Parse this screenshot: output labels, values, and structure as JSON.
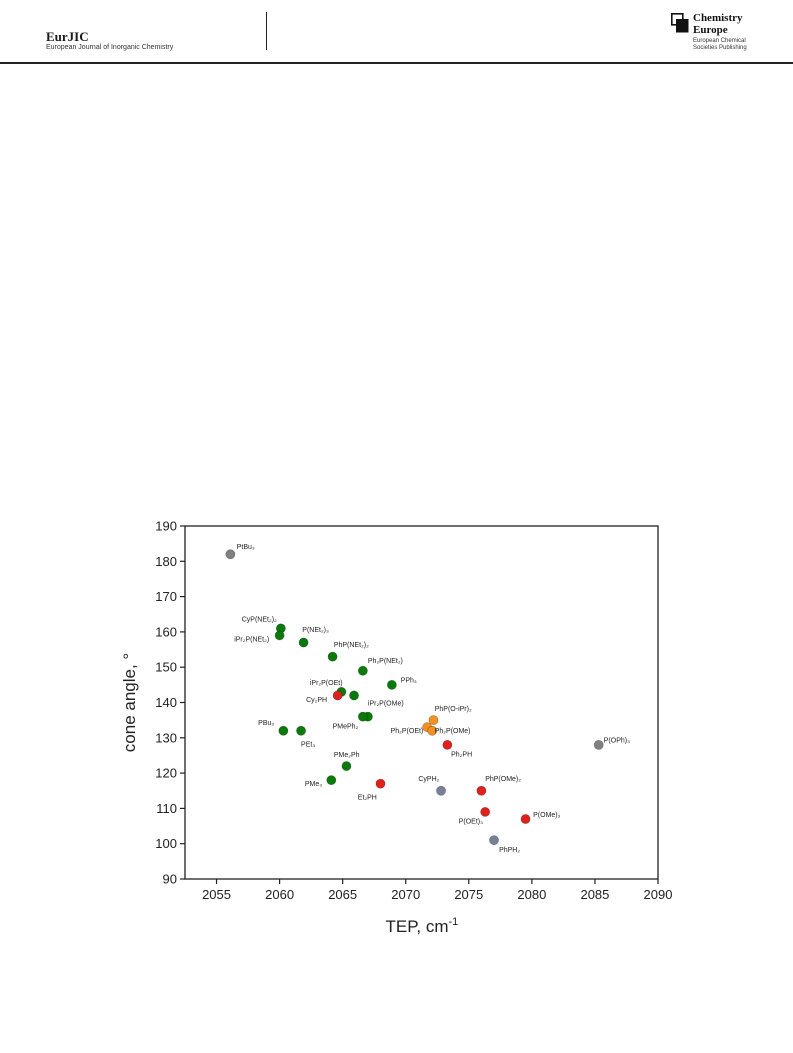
{
  "header": {
    "journal_name": "EurJIC",
    "journal_subtitle": "European Journal of Inorganic Chemistry",
    "publisher_line1": "Chemistry",
    "publisher_line2": "Europe",
    "publisher_sub1": "European Chemical",
    "publisher_sub2": "Societies Publishing"
  },
  "colors": {
    "gray": "#808080",
    "green": "#0a7a0a",
    "red": "#e0201a",
    "orange": "#f39020",
    "slate": "#7a7f98"
  },
  "chart_data": {
    "type": "scatter",
    "xlabel": "TEP, cm",
    "xlabel_sup": "-1",
    "ylabel": "cone angle, °",
    "xlim": [
      2052.5,
      2090
    ],
    "ylim": [
      90,
      190
    ],
    "xticks": [
      2055,
      2060,
      2065,
      2070,
      2075,
      2080,
      2085,
      2090
    ],
    "yticks": [
      90,
      100,
      110,
      120,
      130,
      140,
      150,
      160,
      170,
      180,
      190
    ],
    "grid": false,
    "points": [
      {
        "label": "PtBu₃",
        "x": 2056.1,
        "y": 182,
        "color": "gray",
        "lx": 2056.6,
        "ly": 183.5
      },
      {
        "label": "CyP(NEt₂)₂",
        "x": 2060.1,
        "y": 161,
        "color": "green",
        "lx": 2057.0,
        "ly": 163.0
      },
      {
        "label": "iPr₂P(NEt₂)",
        "x": 2060.0,
        "y": 159,
        "color": "green",
        "lx": 2056.4,
        "ly": 157.3
      },
      {
        "label": "P(NEt₂)₃",
        "x": 2061.9,
        "y": 157,
        "color": "green",
        "lx": 2061.8,
        "ly": 160.0
      },
      {
        "label": "PhP(NEt₂)₂",
        "x": 2064.2,
        "y": 153,
        "color": "green",
        "lx": 2064.3,
        "ly": 155.7
      },
      {
        "label": "Ph₂P(NEt₂)",
        "x": 2066.6,
        "y": 149,
        "color": "green",
        "lx": 2067.0,
        "ly": 151.2
      },
      {
        "label": "PPh₃",
        "x": 2068.9,
        "y": 145,
        "color": "green",
        "lx": 2069.6,
        "ly": 145.6
      },
      {
        "label": "iPr₂P(OEt)",
        "x": 2064.9,
        "y": 143,
        "color": "green",
        "lx": 2062.4,
        "ly": 145.0
      },
      {
        "label": "Cy₂PH",
        "x": 2064.6,
        "y": 142,
        "color": "red",
        "lx": 2062.1,
        "ly": 140.2
      },
      {
        "label": "",
        "x": 2065.9,
        "y": 142,
        "color": "green",
        "lx": 0,
        "ly": 0
      },
      {
        "label": "iPr₂P(OMe)",
        "x": 2067.0,
        "y": 136,
        "color": "green",
        "lx": 2067.0,
        "ly": 139.2
      },
      {
        "label": "PMePh₂",
        "x": 2066.6,
        "y": 136,
        "color": "green",
        "lx": 2064.2,
        "ly": 132.7
      },
      {
        "label": "PBu₃",
        "x": 2060.3,
        "y": 132,
        "color": "green",
        "lx": 2058.3,
        "ly": 133.6
      },
      {
        "label": "PEt₃",
        "x": 2061.7,
        "y": 132,
        "color": "green",
        "lx": 2061.7,
        "ly": 127.6
      },
      {
        "label": "PhP(O-iPr)₂",
        "x": 2072.2,
        "y": 135,
        "color": "orange",
        "lx": 2072.3,
        "ly": 137.6
      },
      {
        "label": "Ph₂P(OEt)",
        "x": 2071.7,
        "y": 133,
        "color": "orange",
        "lx": 2068.8,
        "ly": 131.3
      },
      {
        "label": "Ph₂P(OMe)",
        "x": 2072.1,
        "y": 132,
        "color": "orange",
        "lx": 2072.3,
        "ly": 131.3
      },
      {
        "label": "Ph₂PH",
        "x": 2073.3,
        "y": 128,
        "color": "red",
        "lx": 2073.6,
        "ly": 124.7
      },
      {
        "label": "P(OPh)₃",
        "x": 2085.3,
        "y": 128,
        "color": "gray",
        "lx": 2085.7,
        "ly": 128.6
      },
      {
        "label": "PMe₂Ph",
        "x": 2065.3,
        "y": 122,
        "color": "green",
        "lx": 2064.3,
        "ly": 124.6
      },
      {
        "label": "PMe₃",
        "x": 2064.1,
        "y": 118,
        "color": "green",
        "lx": 2062.0,
        "ly": 116.3
      },
      {
        "label": "Et₂PH",
        "x": 2068.0,
        "y": 117,
        "color": "red",
        "lx": 2066.2,
        "ly": 112.5
      },
      {
        "label": "CyPH₂",
        "x": 2072.8,
        "y": 115,
        "color": "slate",
        "lx": 2071.0,
        "ly": 117.8
      },
      {
        "label": "PhP(OMe)₂",
        "x": 2076.0,
        "y": 115,
        "color": "red",
        "lx": 2076.3,
        "ly": 117.8
      },
      {
        "label": "P(OEt)₃",
        "x": 2076.3,
        "y": 109,
        "color": "red",
        "lx": 2074.2,
        "ly": 105.7
      },
      {
        "label": "P(OMe)₃",
        "x": 2079.5,
        "y": 107,
        "color": "red",
        "lx": 2080.1,
        "ly": 107.6
      },
      {
        "label": "PhPH₂",
        "x": 2077.0,
        "y": 101,
        "color": "slate",
        "lx": 2077.4,
        "ly": 97.6
      }
    ]
  }
}
